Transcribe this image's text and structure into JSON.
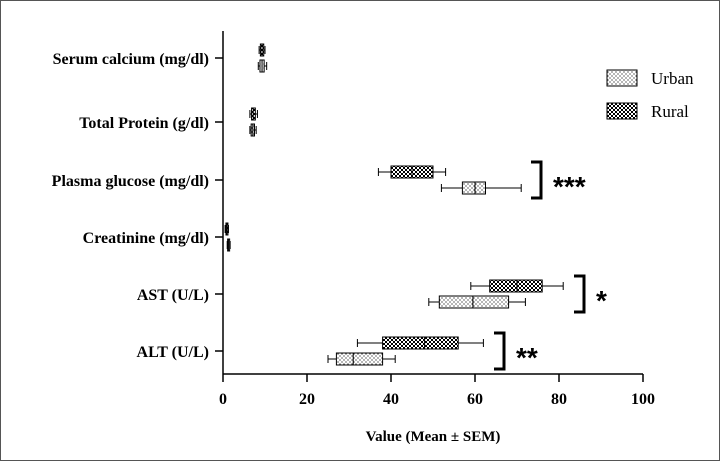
{
  "chart_data": {
    "type": "horizontal_boxplot",
    "title": "",
    "xlabel": "Value (Mean ± SEM)",
    "ylabel": "",
    "xlim": [
      0,
      100
    ],
    "xticks": [
      0,
      20,
      40,
      60,
      80,
      100
    ],
    "xtick_labels": [
      "0",
      "20",
      "40",
      "60",
      "80",
      "100"
    ],
    "categories": [
      "Serum calcium (mg/dl)",
      "Total Protein (g/dl)",
      "Plasma glucose (mg/dl)",
      "Creatinine (mg/dl)",
      "AST (U/L)",
      "ALT (U/L)"
    ],
    "legend": {
      "position": "top-right",
      "entries": [
        {
          "name": "Urban",
          "pattern": "dotted"
        },
        {
          "name": "Rural",
          "pattern": "checkered"
        }
      ]
    },
    "series": [
      {
        "name": "Rural",
        "pattern": "checkered",
        "boxes": [
          {
            "min": 8.6,
            "q1": 8.9,
            "median": 9.3,
            "q3": 9.7,
            "max": 10.0
          },
          {
            "min": 6.4,
            "q1": 6.8,
            "median": 7.2,
            "q3": 7.7,
            "max": 8.2
          },
          {
            "min": 37,
            "q1": 40,
            "median": 45,
            "q3": 50,
            "max": 53
          },
          {
            "min": 0.5,
            "q1": 0.7,
            "median": 0.9,
            "q3": 1.1,
            "max": 1.3
          },
          {
            "min": 59,
            "q1": 63.5,
            "median": 70,
            "q3": 76,
            "max": 81
          },
          {
            "min": 32,
            "q1": 38,
            "median": 48,
            "q3": 56,
            "max": 62
          }
        ]
      },
      {
        "name": "Urban",
        "pattern": "dotted",
        "boxes": [
          {
            "min": 8.4,
            "q1": 8.8,
            "median": 9.3,
            "q3": 9.8,
            "max": 10.4
          },
          {
            "min": 6.4,
            "q1": 6.7,
            "median": 7.1,
            "q3": 7.5,
            "max": 7.9
          },
          {
            "min": 52,
            "q1": 57,
            "median": 60,
            "q3": 62.5,
            "max": 71
          },
          {
            "min": 1.0,
            "q1": 1.1,
            "median": 1.3,
            "q3": 1.5,
            "max": 1.7
          },
          {
            "min": 49,
            "q1": 51.5,
            "median": 59.5,
            "q3": 68,
            "max": 72
          },
          {
            "min": 25,
            "q1": 27,
            "median": 31,
            "q3": 38,
            "max": 41
          }
        ]
      }
    ],
    "annotations": [
      {
        "category": "Plasma glucose (mg/dl)",
        "text": "***"
      },
      {
        "category": "AST (U/L)",
        "text": "*"
      },
      {
        "category": "ALT (U/L)",
        "text": "**"
      }
    ],
    "colors": {
      "stroke": "#000000",
      "background": "#ffffff"
    }
  }
}
